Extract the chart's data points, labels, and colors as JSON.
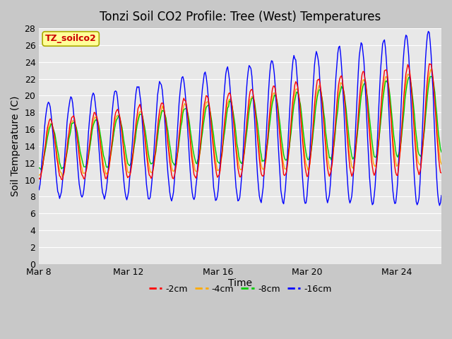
{
  "title": "Tonzi Soil CO2 Profile: Tree (West) Temperatures",
  "xlabel": "Time",
  "ylabel": "Soil Temperature (C)",
  "ylim": [
    0,
    28
  ],
  "yticks": [
    0,
    2,
    4,
    6,
    8,
    10,
    12,
    14,
    16,
    18,
    20,
    22,
    24,
    26,
    28
  ],
  "x_tick_positions": [
    0,
    4,
    8,
    12,
    16
  ],
  "x_tick_labels": [
    "Mar 8",
    "Mar 12",
    "Mar 16",
    "Mar 20",
    "Mar 24"
  ],
  "series_colors": [
    "#ff0000",
    "#ffaa00",
    "#00cc00",
    "#0000ff"
  ],
  "series_labels": [
    "-2cm",
    "-4cm",
    "-8cm",
    "-16cm"
  ],
  "legend_box_facecolor": "#ffff99",
  "legend_box_edgecolor": "#aaaa00",
  "legend_text": "TZ_soilco2",
  "plot_bg_color": "#e8e8e8",
  "grid_color": "#ffffff",
  "fig_bg_color": "#c8c8c8",
  "title_fontsize": 12,
  "axis_label_fontsize": 10,
  "tick_fontsize": 9
}
